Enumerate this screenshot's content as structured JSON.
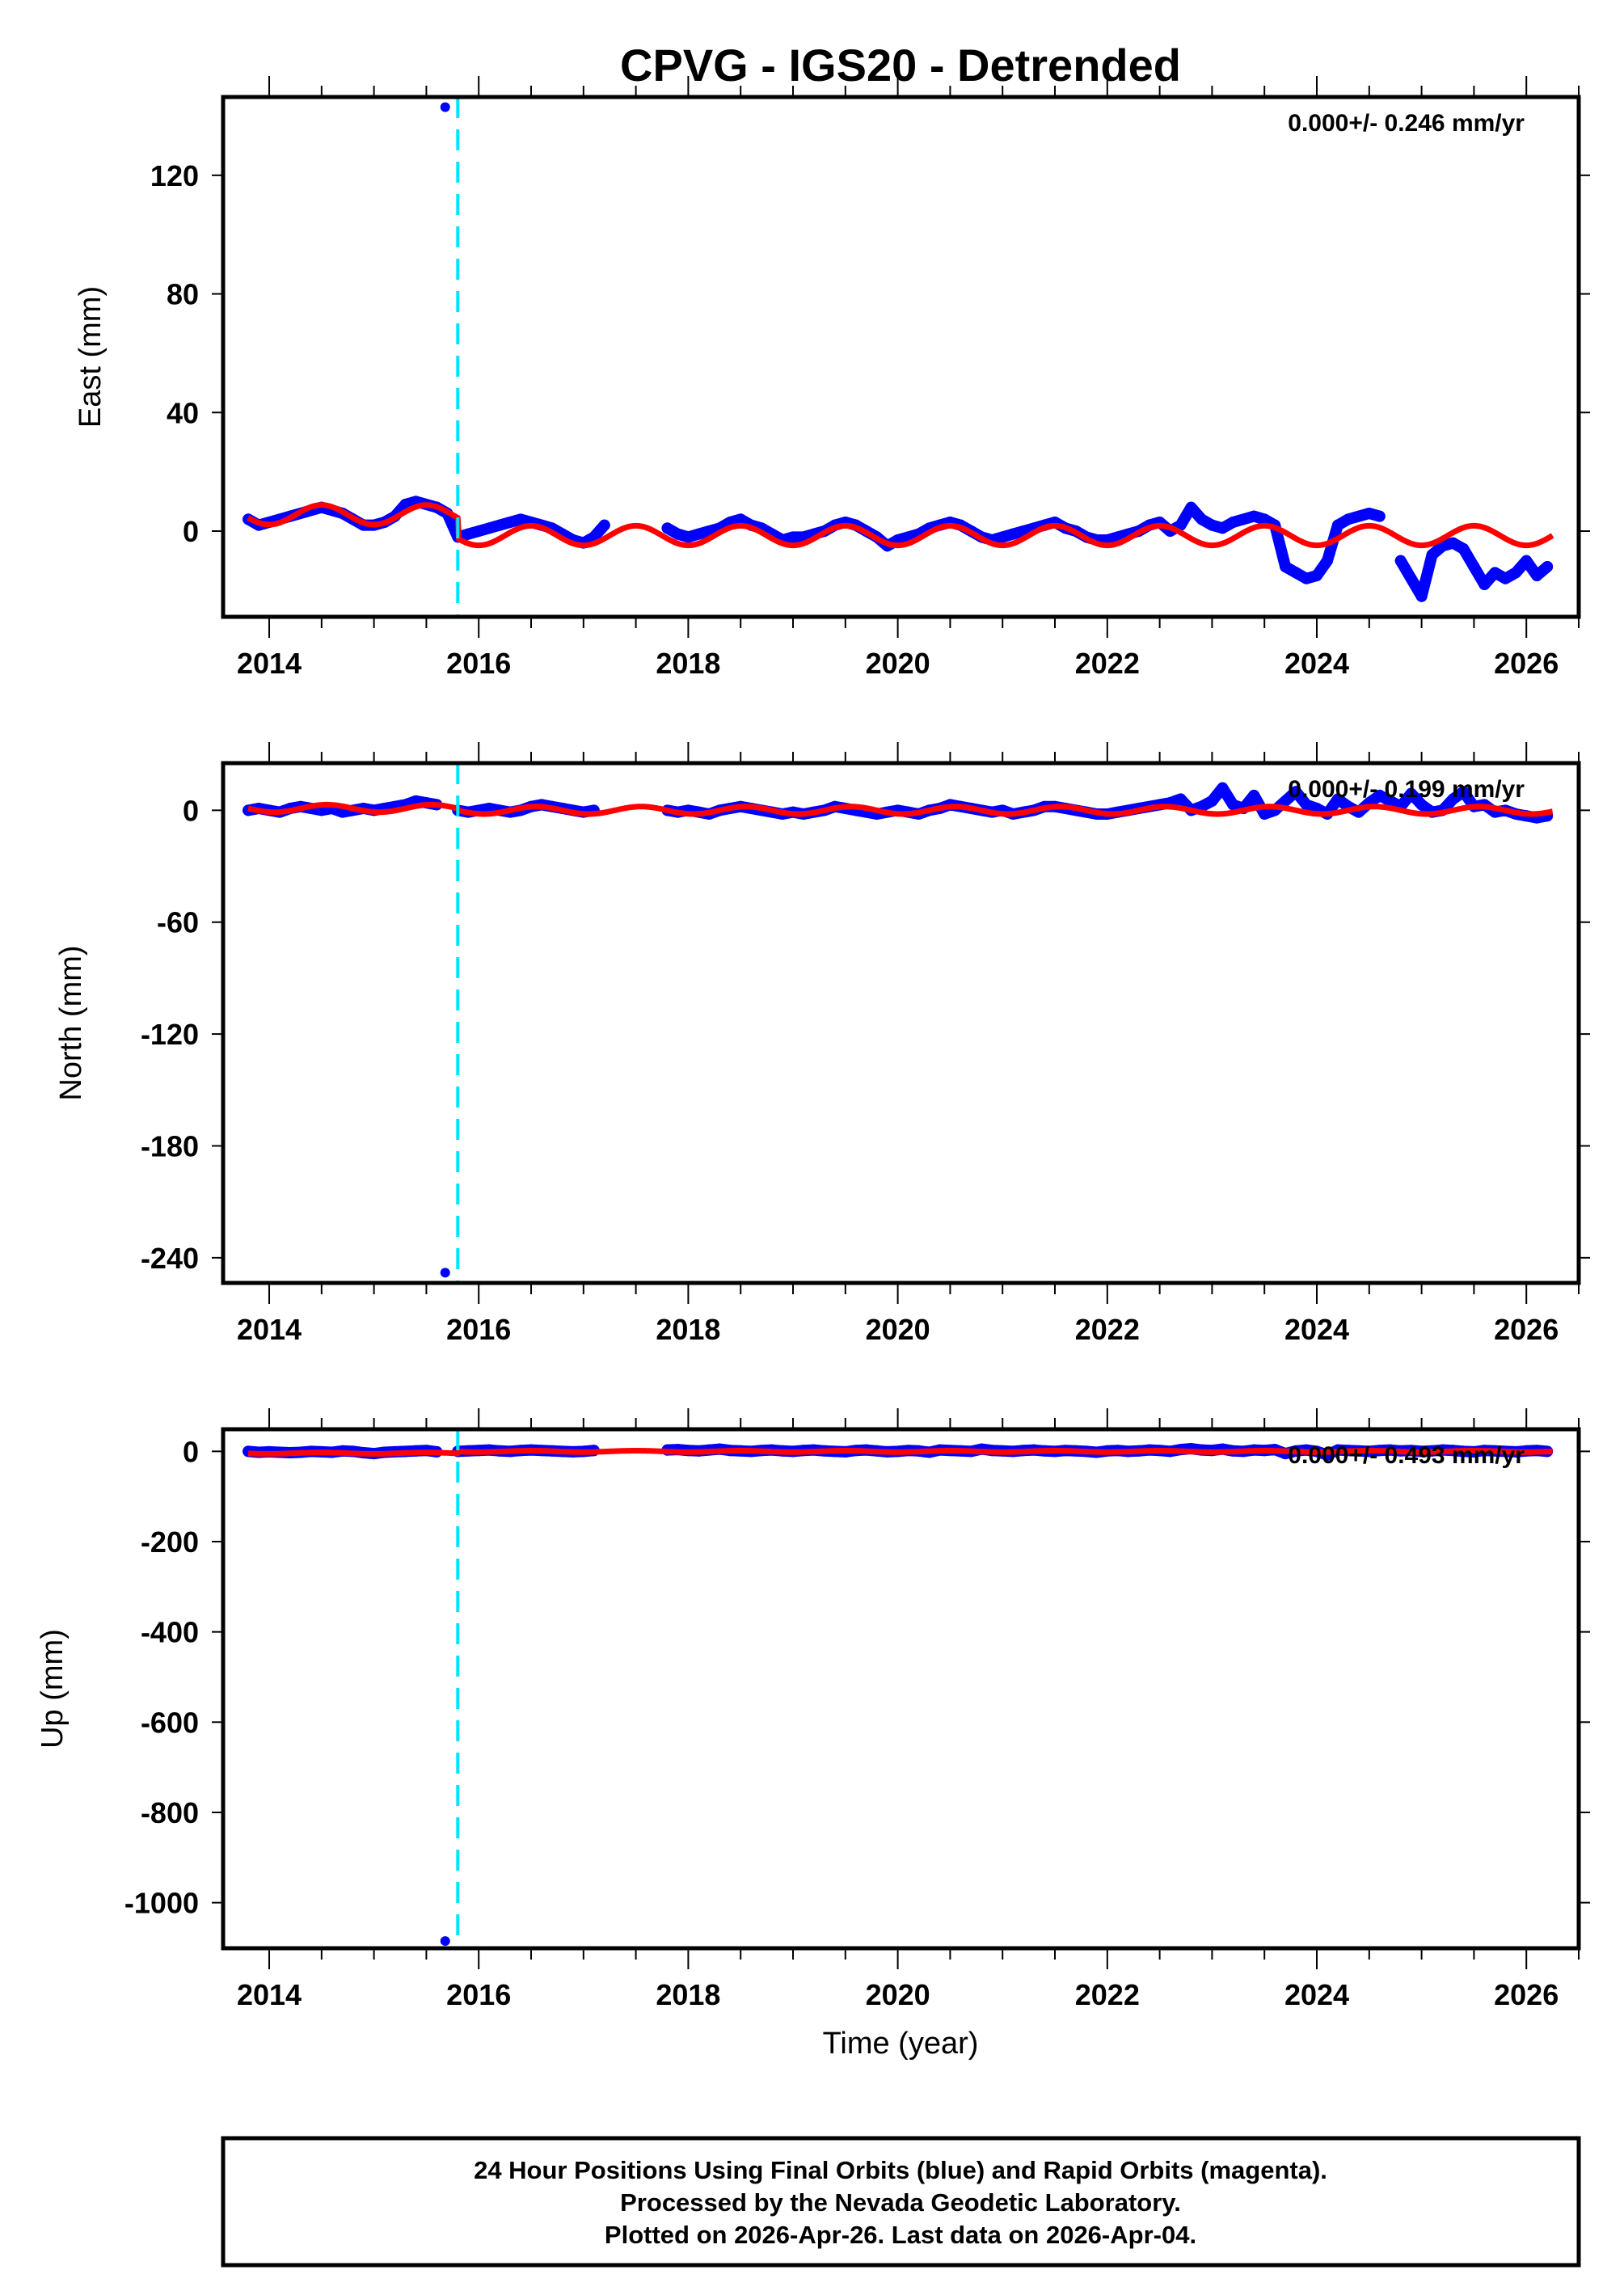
{
  "title": "CPVG - IGS20 - Detrended",
  "xlabel": "Time (year)",
  "footer": {
    "line1": "24 Hour Positions Using Final Orbits (blue) and Rapid Orbits (magenta).",
    "line2": "Processed by the Nevada Geodetic Laboratory.",
    "line3": "Plotted on 2026-Apr-26. Last data on 2026-Apr-04."
  },
  "colors": {
    "obs": "#0000ff",
    "model": "#ff0000",
    "break_line": "#00e5ff",
    "frame": "#000000"
  },
  "chart_data": [
    {
      "type": "scatter",
      "component": "east",
      "ylabel": "East (mm)",
      "rate_text": "0.000+/- 0.246 mm/yr",
      "xlim": [
        2013.56,
        2026.5
      ],
      "ylim": [
        -28.9,
        146.4
      ],
      "xticks": [
        "2014",
        "2016",
        "2018",
        "2020",
        "2022",
        "2024",
        "2026"
      ],
      "yticks": [
        "0",
        "40",
        "80",
        "120"
      ],
      "break_year": 2015.8,
      "x_start": 2013.8,
      "x_step": 0.1,
      "values": [
        4,
        2,
        3,
        4,
        5,
        6,
        7,
        8,
        7,
        6,
        4,
        2,
        2,
        3,
        5,
        9,
        10,
        9,
        8,
        6,
        -2,
        -1,
        0,
        1,
        2,
        3,
        4,
        3,
        2,
        1,
        -1,
        -3,
        -4,
        -2,
        2,
        null,
        null,
        null,
        null,
        null,
        1,
        -1,
        -2,
        -1,
        0,
        1,
        3,
        4,
        2,
        1,
        -1,
        -3,
        -2,
        -2,
        -1,
        0,
        2,
        3,
        2,
        0,
        -2,
        -5,
        -3,
        -2,
        -1,
        1,
        2,
        3,
        2,
        0,
        -2,
        -3,
        -2,
        -1,
        0,
        1,
        2,
        3,
        1,
        0,
        -2,
        -3,
        -3,
        -2,
        -1,
        0,
        2,
        3,
        0,
        2,
        8,
        4,
        2,
        1,
        3,
        4,
        5,
        4,
        2,
        -12,
        -14,
        -16,
        -15,
        -10,
        2,
        4,
        5,
        6,
        5,
        null,
        -10,
        -16,
        -22,
        -8,
        -5,
        -4,
        -6,
        -12,
        -18,
        -14,
        -16,
        -14,
        -10,
        -15,
        -12
      ],
      "outliers": [
        [
          2015.68,
          143
        ]
      ],
      "model": {
        "start": 2013.8,
        "end": 2026.25,
        "offset_before": 5.5,
        "offset_after": -1.5,
        "annual_amp": 3.3,
        "peak_phase": 0.5
      }
    },
    {
      "type": "scatter",
      "component": "north",
      "ylabel": "North (mm)",
      "rate_text": "0.000+/- 0.199 mm/yr",
      "xlim": [
        2013.56,
        2026.5
      ],
      "ylim": [
        -253.5,
        25.3
      ],
      "xticks": [
        "2014",
        "2016",
        "2018",
        "2020",
        "2022",
        "2024",
        "2026"
      ],
      "yticks": [
        "0",
        "-60",
        "-120",
        "-180",
        "-240"
      ],
      "break_year": 2015.8,
      "x_start": 2013.8,
      "x_step": 0.1,
      "values": [
        0,
        1,
        0,
        -1,
        1,
        2,
        1,
        0,
        1,
        -1,
        0,
        1,
        0,
        1,
        2,
        3,
        5,
        4,
        3,
        null,
        0,
        -1,
        0,
        1,
        0,
        -1,
        0,
        2,
        3,
        2,
        1,
        0,
        -1,
        0,
        null,
        null,
        null,
        null,
        null,
        null,
        0,
        -1,
        0,
        -1,
        -2,
        0,
        1,
        2,
        1,
        0,
        -1,
        -2,
        -1,
        -2,
        -1,
        0,
        2,
        1,
        0,
        -1,
        -2,
        -1,
        0,
        -1,
        -2,
        0,
        1,
        3,
        2,
        1,
        0,
        -1,
        0,
        -2,
        -1,
        0,
        2,
        2,
        1,
        0,
        -1,
        -2,
        -2,
        -1,
        0,
        1,
        2,
        3,
        4,
        6,
        0,
        2,
        5,
        12,
        3,
        1,
        8,
        -2,
        0,
        5,
        10,
        3,
        1,
        -2,
        6,
        2,
        -1,
        4,
        8,
        5,
        2,
        9,
        3,
        -1,
        0,
        6,
        10,
        2,
        3,
        -1,
        0,
        -2,
        -3,
        -4,
        -3
      ],
      "outliers": [
        [
          2015.68,
          -248
        ]
      ],
      "model": {
        "start": 2013.8,
        "end": 2026.25,
        "offset_before": 1,
        "offset_after": 0,
        "annual_amp": 2,
        "peak_phase": 0.55
      }
    },
    {
      "type": "scatter",
      "component": "up",
      "ylabel": "Up (mm)",
      "rate_text": "0.000+/- 0.493 mm/yr",
      "xlim": [
        2013.56,
        2026.5
      ],
      "ylim": [
        -1101,
        49
      ],
      "xticks": [
        "2014",
        "2016",
        "2018",
        "2020",
        "2022",
        "2024",
        "2026"
      ],
      "yticks": [
        "0",
        "-200",
        "-400",
        "-600",
        "-800",
        "-1000"
      ],
      "break_year": 2015.8,
      "x_start": 2013.8,
      "x_step": 0.1,
      "values": [
        0,
        -2,
        -1,
        -2,
        -3,
        -2,
        0,
        -1,
        -2,
        1,
        0,
        -3,
        -5,
        -2,
        -1,
        0,
        1,
        2,
        -1,
        null,
        0,
        1,
        2,
        3,
        1,
        0,
        2,
        3,
        2,
        1,
        0,
        -1,
        0,
        2,
        null,
        null,
        null,
        null,
        null,
        null,
        3,
        4,
        2,
        1,
        3,
        5,
        2,
        1,
        0,
        2,
        3,
        1,
        0,
        2,
        3,
        1,
        0,
        -1,
        2,
        3,
        1,
        -1,
        0,
        2,
        1,
        -2,
        3,
        2,
        1,
        0,
        5,
        2,
        1,
        0,
        2,
        3,
        1,
        0,
        2,
        1,
        0,
        -2,
        1,
        2,
        0,
        1,
        3,
        2,
        0,
        4,
        6,
        3,
        2,
        5,
        1,
        0,
        3,
        2,
        4,
        -5,
        1,
        3,
        0,
        -8,
        3,
        2,
        1,
        0,
        2,
        3,
        1,
        2,
        0,
        1,
        3,
        2,
        0,
        -1,
        2,
        1,
        0,
        -1,
        1,
        2,
        0
      ],
      "outliers": [
        [
          2015.68,
          -1085
        ]
      ],
      "model": {
        "start": 2013.8,
        "end": 2026.25,
        "offset_before": -4,
        "offset_after": 0,
        "annual_amp": 1.5,
        "peak_phase": 0.5
      }
    }
  ]
}
